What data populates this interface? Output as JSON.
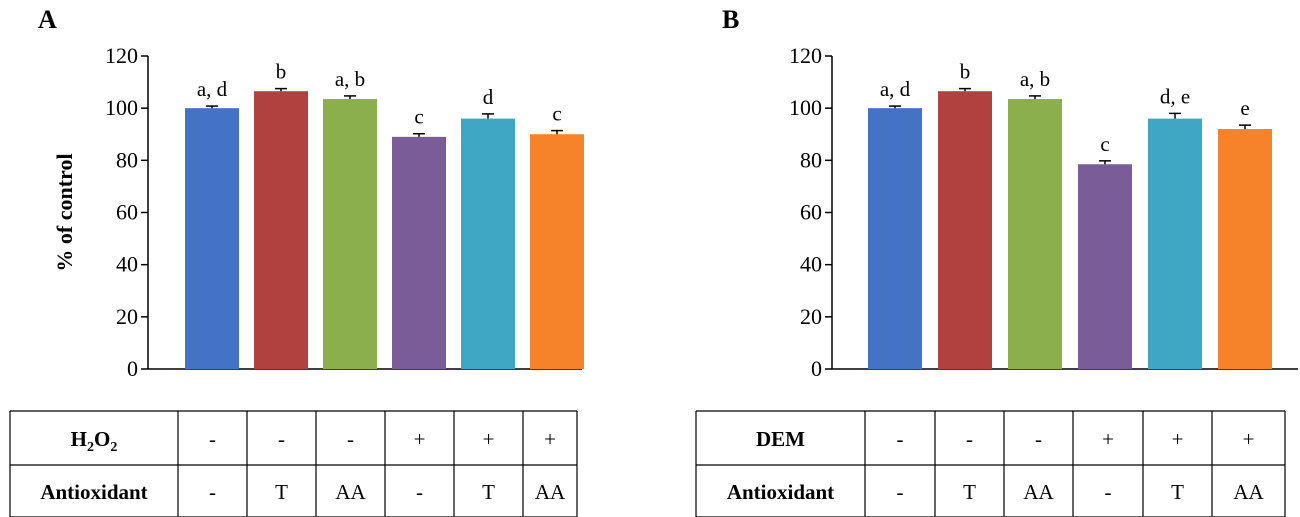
{
  "colors": [
    "#4472C4",
    "#B0413E",
    "#8BAF4C",
    "#7A5C99",
    "#3FA6C3",
    "#F6822A"
  ],
  "chart_data": [
    {
      "type": "bar",
      "panel": "A",
      "ylabel": "% of control",
      "ylim": [
        0,
        120
      ],
      "yticks": [
        0,
        20,
        40,
        60,
        80,
        100,
        120
      ],
      "values": [
        100,
        106.5,
        103.5,
        89,
        96,
        90
      ],
      "errors": [
        0.8,
        1.0,
        1.2,
        1.2,
        1.8,
        1.4
      ],
      "letters": [
        "a, d",
        "b",
        "a, b",
        "c",
        "d",
        "c"
      ],
      "table": {
        "treatment_label": "H2O2",
        "treatment_main": "H",
        "treatment_sub1": "2",
        "treatment_mid": "O",
        "treatment_sub2": "2",
        "treatment": [
          "-",
          "-",
          "-",
          "+",
          "+",
          "+"
        ],
        "antioxidant_label": "Antioxidant",
        "antioxidant": [
          "-",
          "T",
          "AA",
          "-",
          "T",
          "AA"
        ]
      }
    },
    {
      "type": "bar",
      "panel": "B",
      "ylabel": "",
      "ylim": [
        0,
        120
      ],
      "yticks": [
        0,
        20,
        40,
        60,
        80,
        100,
        120
      ],
      "values": [
        100,
        106.5,
        103.5,
        78.5,
        96,
        92
      ],
      "errors": [
        0.8,
        1.0,
        1.2,
        1.3,
        2.0,
        1.5
      ],
      "letters": [
        "a, d",
        "b",
        "a, b",
        "c",
        "d, e",
        "e"
      ],
      "table": {
        "treatment_label": "DEM",
        "treatment": [
          "-",
          "-",
          "-",
          "+",
          "+",
          "+"
        ],
        "antioxidant_label": "Antioxidant",
        "antioxidant": [
          "-",
          "T",
          "AA",
          "-",
          "T",
          "AA"
        ]
      }
    }
  ]
}
